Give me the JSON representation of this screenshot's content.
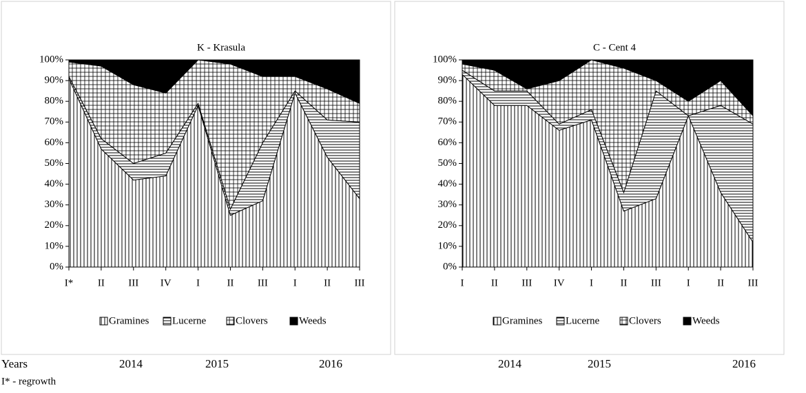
{
  "chart_data": [
    {
      "type": "area",
      "title": "K - Krasula",
      "categories": [
        "I*",
        "II",
        "III",
        "IV",
        "I",
        "II",
        "III",
        "I",
        "II",
        "III"
      ],
      "ylim": [
        0,
        100
      ],
      "yticks": [
        {
          "value": 0,
          "label": "0%"
        },
        {
          "value": 10,
          "label": "10%"
        },
        {
          "value": 20,
          "label": "20%"
        },
        {
          "value": 30,
          "label": "30%"
        },
        {
          "value": 40,
          "label": "40%"
        },
        {
          "value": 50,
          "label": "50%"
        },
        {
          "value": 60,
          "label": "60%"
        },
        {
          "value": 70,
          "label": "70%"
        },
        {
          "value": 80,
          "label": "80%"
        },
        {
          "value": 90,
          "label": "90%"
        },
        {
          "value": 100,
          "label": "100%"
        }
      ],
      "stacked": true,
      "legend": "bottom",
      "series": [
        {
          "name": "Gramines",
          "color": "#000000",
          "pattern": "vertical",
          "values": [
            91,
            57,
            42,
            44,
            78,
            25,
            32,
            84,
            53,
            33
          ]
        },
        {
          "name": "Lucerne",
          "color": "#000000",
          "pattern": "horizontal",
          "values": [
            1,
            5,
            8,
            11,
            1,
            3,
            28,
            1,
            18,
            37
          ]
        },
        {
          "name": "Clovers",
          "color": "#000000",
          "pattern": "grid",
          "values": [
            7,
            35,
            38,
            29,
            21,
            70,
            32,
            7,
            15,
            9
          ]
        },
        {
          "name": "Weeds",
          "color": "#000000",
          "pattern": "solid",
          "values": [
            1,
            3,
            12,
            16,
            0,
            2,
            8,
            8,
            14,
            21
          ]
        }
      ],
      "year_labels": [
        "2014",
        "2015",
        "2016"
      ]
    },
    {
      "type": "area",
      "title": "C - Cent 4",
      "categories": [
        "I",
        "II",
        "III",
        "IV",
        "I",
        "II",
        "III",
        "I",
        "II",
        "III"
      ],
      "ylim": [
        0,
        100
      ],
      "yticks": [
        {
          "value": 0,
          "label": "0%"
        },
        {
          "value": 10,
          "label": "10%"
        },
        {
          "value": 20,
          "label": "20%"
        },
        {
          "value": 30,
          "label": "30%"
        },
        {
          "value": 40,
          "label": "40%"
        },
        {
          "value": 50,
          "label": "50%"
        },
        {
          "value": 60,
          "label": "60%"
        },
        {
          "value": 70,
          "label": "70%"
        },
        {
          "value": 80,
          "label": "80%"
        },
        {
          "value": 90,
          "label": "90%"
        },
        {
          "value": 100,
          "label": "100%"
        }
      ],
      "stacked": true,
      "legend": "bottom",
      "series": [
        {
          "name": "Gramines",
          "color": "#000000",
          "pattern": "vertical",
          "values": [
            93,
            78,
            78,
            66,
            71,
            27,
            33,
            73,
            36,
            12
          ]
        },
        {
          "name": "Lucerne",
          "color": "#000000",
          "pattern": "horizontal",
          "values": [
            2,
            7,
            7,
            3,
            5,
            9,
            52,
            0,
            42,
            57
          ]
        },
        {
          "name": "Clovers",
          "color": "#000000",
          "pattern": "grid",
          "values": [
            3,
            10,
            1,
            21,
            24,
            60,
            5,
            7,
            12,
            4
          ]
        },
        {
          "name": "Weeds",
          "color": "#000000",
          "pattern": "solid",
          "values": [
            2,
            5,
            14,
            10,
            0,
            4,
            10,
            20,
            10,
            27
          ]
        }
      ],
      "year_labels": [
        "2014",
        "2015",
        "2016"
      ]
    }
  ],
  "axis_caption": "Years",
  "footnote": "I* - regrowth"
}
